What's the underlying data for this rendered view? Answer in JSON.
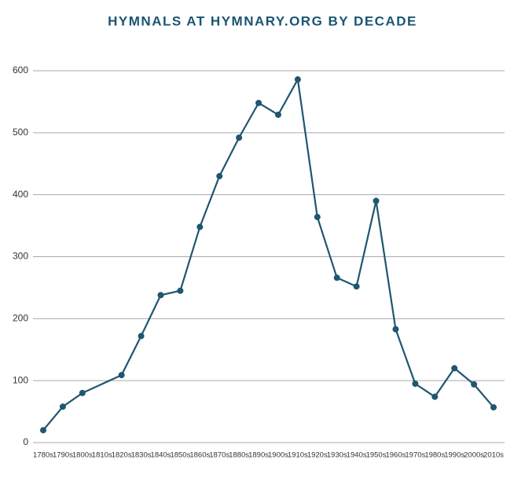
{
  "chart_data": {
    "type": "line",
    "title": "HYMNALS AT HYMNARY.ORG BY DECADE",
    "x": [
      1780,
      1790,
      1800,
      1820,
      1830,
      1840,
      1850,
      1860,
      1870,
      1880,
      1890,
      1900,
      1910,
      1920,
      1930,
      1940,
      1950,
      1960,
      1970,
      1980,
      1990,
      2000,
      2010
    ],
    "values": [
      20,
      58,
      80,
      109,
      172,
      238,
      245,
      348,
      430,
      492,
      548,
      529,
      586,
      364,
      266,
      252,
      390,
      183,
      95,
      74,
      120,
      94,
      57
    ],
    "color": "#1f5670",
    "xlim": [
      1780,
      2010
    ],
    "xticks": [
      {
        "value": 1780,
        "label": "1780s"
      },
      {
        "value": 1790,
        "label": "1790s"
      },
      {
        "value": 1800,
        "label": "1800s"
      },
      {
        "value": 1810,
        "label": "1810s"
      },
      {
        "value": 1820,
        "label": "1820s"
      },
      {
        "value": 1830,
        "label": "1830s"
      },
      {
        "value": 1840,
        "label": "1840s"
      },
      {
        "value": 1850,
        "label": "1850s"
      },
      {
        "value": 1860,
        "label": "1860s"
      },
      {
        "value": 1870,
        "label": "1870s"
      },
      {
        "value": 1880,
        "label": "1880s"
      },
      {
        "value": 1890,
        "label": "1890s"
      },
      {
        "value": 1900,
        "label": "1900s"
      },
      {
        "value": 1910,
        "label": "1910s"
      },
      {
        "value": 1920,
        "label": "1920s"
      },
      {
        "value": 1930,
        "label": "1930s"
      },
      {
        "value": 1940,
        "label": "1940s"
      },
      {
        "value": 1950,
        "label": "1950s"
      },
      {
        "value": 1960,
        "label": "1960s"
      },
      {
        "value": 1970,
        "label": "1970s"
      },
      {
        "value": 1980,
        "label": "1980s"
      },
      {
        "value": 1990,
        "label": "1990s"
      },
      {
        "value": 2000,
        "label": "2000s"
      },
      {
        "value": 2010,
        "label": "2010s"
      }
    ],
    "ylim": [
      0,
      600
    ],
    "yticks": [
      0,
      100,
      200,
      300,
      400,
      500,
      600
    ],
    "grid": true
  }
}
